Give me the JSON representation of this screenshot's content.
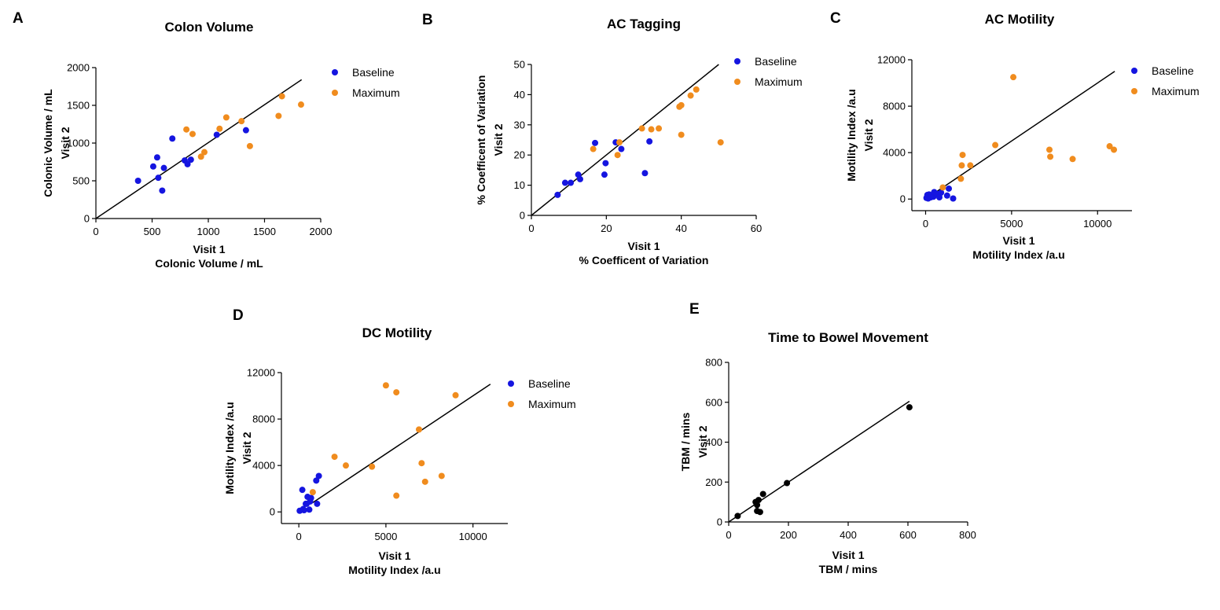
{
  "chart_data": [
    {
      "type": "scatter",
      "panel": "A",
      "title": "Colon Volume",
      "xlabel": [
        "Visit 1",
        "Colonic Volume / mL"
      ],
      "ylabel": [
        "Colonic Volume / mL",
        "Visit 2"
      ],
      "xlim": [
        0,
        2000
      ],
      "ylim": [
        0,
        2000
      ],
      "xticks": [
        0,
        500,
        1000,
        1500,
        2000
      ],
      "yticks": [
        0,
        500,
        1000,
        1500,
        2000
      ],
      "legend": "right",
      "identity_line": [
        [
          0,
          0
        ],
        [
          1830,
          1840
        ]
      ],
      "series": [
        {
          "name": "Baseline",
          "color": "#1515e0",
          "points": [
            [
              375,
              500
            ],
            [
              510,
              690
            ],
            [
              545,
              810
            ],
            [
              555,
              540
            ],
            [
              590,
              370
            ],
            [
              605,
              670
            ],
            [
              680,
              1060
            ],
            [
              790,
              770
            ],
            [
              815,
              720
            ],
            [
              845,
              780
            ],
            [
              1075,
              1110
            ],
            [
              1335,
              1170
            ]
          ]
        },
        {
          "name": "Maximum",
          "color": "#f08c1e",
          "points": [
            [
              805,
              1180
            ],
            [
              860,
              1120
            ],
            [
              935,
              820
            ],
            [
              965,
              880
            ],
            [
              1100,
              1190
            ],
            [
              1160,
              1340
            ],
            [
              1295,
              1290
            ],
            [
              1370,
              960
            ],
            [
              1625,
              1360
            ],
            [
              1655,
              1620
            ],
            [
              1825,
              1510
            ]
          ]
        }
      ]
    },
    {
      "type": "scatter",
      "panel": "B",
      "title": "AC Tagging",
      "xlabel": [
        "Visit 1",
        "% Coefficent of  Variation"
      ],
      "ylabel": [
        "% Coefficent of  Variation",
        "Visit 2"
      ],
      "xlim": [
        0,
        60
      ],
      "ylim": [
        0,
        50
      ],
      "xticks": [
        0,
        20,
        40,
        60
      ],
      "yticks": [
        0,
        10,
        20,
        30,
        40,
        50
      ],
      "legend": "right",
      "identity_line": [
        [
          0,
          0
        ],
        [
          50,
          50
        ]
      ],
      "series": [
        {
          "name": "Baseline",
          "color": "#1515e0",
          "points": [
            [
              7,
              6.8
            ],
            [
              9,
              10.8
            ],
            [
              10.5,
              10.8
            ],
            [
              12.5,
              13.5
            ],
            [
              13,
              12
            ],
            [
              17,
              24
            ],
            [
              19.5,
              13.5
            ],
            [
              19.8,
              17.3
            ],
            [
              22.5,
              24.2
            ],
            [
              24,
              22
            ],
            [
              30.3,
              14
            ],
            [
              31.5,
              24.5
            ]
          ]
        },
        {
          "name": "Maximum",
          "color": "#f08c1e",
          "points": [
            [
              16.5,
              22
            ],
            [
              23,
              20
            ],
            [
              23.5,
              24.2
            ],
            [
              29.5,
              28.8
            ],
            [
              32,
              28.5
            ],
            [
              34,
              28.8
            ],
            [
              39.5,
              36
            ],
            [
              40,
              36.5
            ],
            [
              40,
              26.7
            ],
            [
              42.5,
              39.7
            ],
            [
              44,
              41.7
            ],
            [
              50.5,
              24.2
            ]
          ]
        }
      ]
    },
    {
      "type": "scatter",
      "panel": "C",
      "title": "AC Motility",
      "xlabel": [
        "Visit 1",
        "Motility Index /a.u"
      ],
      "ylabel": [
        "Motility Index /a.u",
        "Visit 2"
      ],
      "xlim": [
        -800,
        12000
      ],
      "ylim": [
        -1000,
        12000
      ],
      "xticks": [
        0,
        5000,
        10000
      ],
      "yticks": [
        0,
        4000,
        8000,
        12000
      ],
      "legend": "right",
      "identity_line": [
        [
          0,
          0
        ],
        [
          11000,
          11000
        ]
      ],
      "series": [
        {
          "name": "Baseline",
          "color": "#1515e0",
          "points": [
            [
              50,
              100
            ],
            [
              100,
              350
            ],
            [
              150,
              50
            ],
            [
              200,
              400
            ],
            [
              250,
              250
            ],
            [
              300,
              150
            ],
            [
              350,
              300
            ],
            [
              450,
              200
            ],
            [
              500,
              600
            ],
            [
              650,
              450
            ],
            [
              800,
              150
            ],
            [
              900,
              550
            ],
            [
              1250,
              300
            ],
            [
              1350,
              900
            ],
            [
              1600,
              50
            ]
          ]
        },
        {
          "name": "Maximum",
          "color": "#f08c1e",
          "points": [
            [
              1000,
              1000
            ],
            [
              2050,
              1750
            ],
            [
              2100,
              2900
            ],
            [
              2150,
              3800
            ],
            [
              2600,
              2900
            ],
            [
              4050,
              4650
            ],
            [
              5100,
              10500
            ],
            [
              7200,
              4250
            ],
            [
              7250,
              3650
            ],
            [
              8550,
              3450
            ],
            [
              10700,
              4550
            ],
            [
              10950,
              4250
            ]
          ]
        }
      ]
    },
    {
      "type": "scatter",
      "panel": "D",
      "title": "DC Motility",
      "xlabel": [
        "Visit 1",
        "Motility Index /a.u"
      ],
      "ylabel": [
        "Motility Index /a.u",
        "Visit 2"
      ],
      "xlim": [
        -1000,
        12000
      ],
      "ylim": [
        -1000,
        12000
      ],
      "xticks": [
        0,
        5000,
        10000
      ],
      "yticks": [
        0,
        4000,
        8000,
        12000
      ],
      "legend": "right",
      "identity_line": [
        [
          800,
          800
        ],
        [
          11000,
          11000
        ]
      ],
      "series": [
        {
          "name": "Baseline",
          "color": "#1515e0",
          "points": [
            [
              50,
              100
            ],
            [
              200,
              1900
            ],
            [
              250,
              250
            ],
            [
              300,
              150
            ],
            [
              400,
              700
            ],
            [
              450,
              700
            ],
            [
              500,
              1300
            ],
            [
              600,
              200
            ],
            [
              650,
              900
            ],
            [
              700,
              1200
            ],
            [
              1000,
              2700
            ],
            [
              1050,
              700
            ],
            [
              1150,
              3100
            ]
          ]
        },
        {
          "name": "Maximum",
          "color": "#f08c1e",
          "points": [
            [
              800,
              1700
            ],
            [
              2050,
              4750
            ],
            [
              2700,
              4000
            ],
            [
              4200,
              3900
            ],
            [
              5000,
              10900
            ],
            [
              5600,
              10300
            ],
            [
              5600,
              1400
            ],
            [
              6900,
              7100
            ],
            [
              7050,
              4200
            ],
            [
              7250,
              2600
            ],
            [
              8200,
              3100
            ],
            [
              9000,
              10050
            ]
          ]
        }
      ]
    },
    {
      "type": "scatter",
      "panel": "E",
      "title": "Time to Bowel Movement",
      "xlabel": [
        "Visit 1",
        "TBM / mins"
      ],
      "ylabel": [
        "TBM / mins",
        "Visit 2"
      ],
      "xlim": [
        0,
        800
      ],
      "ylim": [
        0,
        800
      ],
      "xticks": [
        0,
        200,
        400,
        600,
        800
      ],
      "yticks": [
        0,
        200,
        400,
        600,
        800
      ],
      "legend": "none",
      "identity_line": [
        [
          0,
          0
        ],
        [
          605,
          605
        ]
      ],
      "series": [
        {
          "name": "",
          "color": "#000000",
          "points": [
            [
              30,
              30
            ],
            [
              90,
              100
            ],
            [
              95,
              85
            ],
            [
              95,
              55
            ],
            [
              100,
              110
            ],
            [
              105,
              50
            ],
            [
              115,
              140
            ],
            [
              195,
              195
            ],
            [
              605,
              575
            ]
          ]
        }
      ]
    }
  ]
}
